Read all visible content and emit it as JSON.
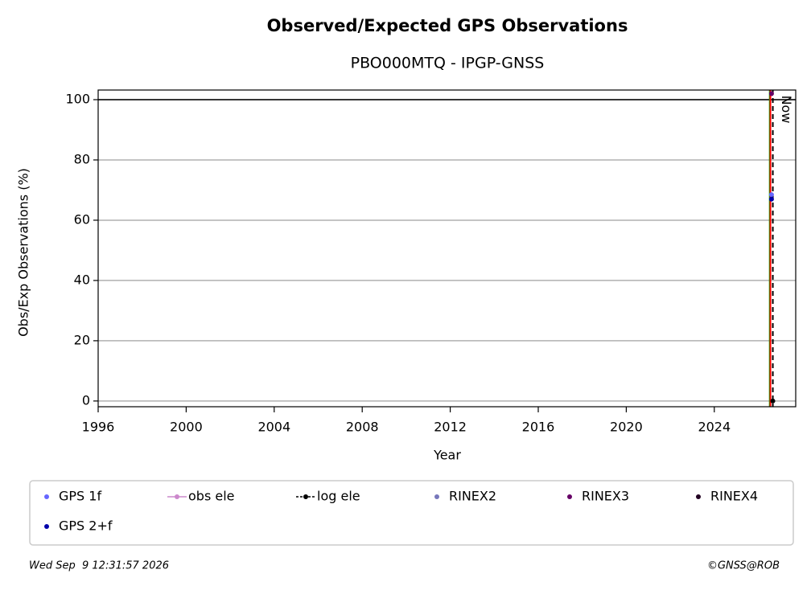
{
  "chart_data": {
    "type": "scatter",
    "title": "Observed/Expected GPS Observations",
    "subtitle": "PBO000MTQ - IPGP-GNSS",
    "x_label": "Year",
    "y_label": "Obs/Exp Observations (%)",
    "xlim": [
      1996,
      2027.7
    ],
    "ylim": [
      -1.9,
      103.2
    ],
    "xticks": [
      1996,
      2000,
      2004,
      2008,
      2012,
      2016,
      2020,
      2024
    ],
    "yticks": [
      0,
      20,
      40,
      60,
      80,
      100
    ],
    "grid": true,
    "reference_y": 100,
    "now": {
      "x": 2026.66,
      "label": "Now"
    },
    "events": [
      {
        "x": 2026.52,
        "color": "#00aa00"
      },
      {
        "x": 2026.55,
        "color": "#ff0000"
      }
    ],
    "series": [
      {
        "name": "GPS 1f",
        "color": "#6666ff",
        "x": [
          2026.6
        ],
        "values": [
          68.5
        ]
      },
      {
        "name": "obs ele",
        "color": "#cc88cc",
        "x": [],
        "values": []
      },
      {
        "name": "log ele",
        "color": "#000000",
        "x": [
          2026.66
        ],
        "values": [
          0
        ]
      },
      {
        "name": "RINEX2",
        "color": "#7777bb",
        "x": [],
        "values": []
      },
      {
        "name": "RINEX3",
        "color": "#660066",
        "x": [
          2026.6
        ],
        "values": [
          102
        ]
      },
      {
        "name": "RINEX4",
        "color": "#220022",
        "x": [],
        "values": []
      },
      {
        "name": "GPS 2+f",
        "color": "#0000aa",
        "x": [
          2026.6
        ],
        "values": [
          67
        ]
      }
    ],
    "footer_left": "Wed Sep  9 12:31:57 2026",
    "footer_right": "©GNSS@ROB"
  }
}
